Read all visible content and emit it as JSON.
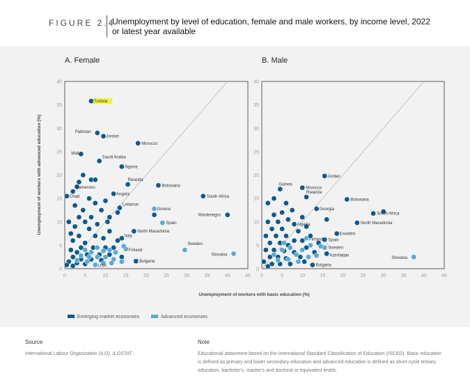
{
  "figure": {
    "label": "FIGURE 2.4",
    "title": "Unemployment by level of education, female and male workers, by income level, 2022 or latest year available"
  },
  "colors": {
    "emerging": "#0c5a8f",
    "advanced": "#5aa9d6",
    "diagonal": "#c4c4c4",
    "highlight": "#f5ef3a"
  },
  "legend": {
    "items": [
      {
        "label": "Emerging market economies",
        "color": "#0c5a8f"
      },
      {
        "label": "Advanced economies",
        "color": "#5aa9d6"
      }
    ]
  },
  "chart_data": [
    {
      "type": "scatter",
      "title": "A. Female",
      "xlabel": "Unemployment of workers with basic education (%)",
      "ylabel": "Unemployment of workers with advanced education (%)",
      "xlim": [
        0,
        45
      ],
      "ylim": [
        0,
        40
      ],
      "xticks": [
        "0",
        "5",
        "10",
        "15",
        "20",
        "25",
        "30",
        "35",
        "40",
        "45"
      ],
      "yticks": [
        "0",
        "5",
        "10",
        "15",
        "20",
        "25",
        "30",
        "35",
        "40"
      ],
      "reference_line": "45-degree line",
      "series": [
        {
          "name": "Emerging market economies",
          "points": [
            {
              "x": 6.5,
              "y": 35.8,
              "label": "Tunisia",
              "highlight": true
            },
            {
              "x": 8,
              "y": 29,
              "label": "Pakistan"
            },
            {
              "x": 9.5,
              "y": 28.3,
              "label": "Jordan"
            },
            {
              "x": 18,
              "y": 26.8,
              "label": "Morocco"
            },
            {
              "x": 4,
              "y": 24.5,
              "label": "Mali"
            },
            {
              "x": 8.5,
              "y": 23,
              "label": "Saudi Arabia"
            },
            {
              "x": 14,
              "y": 21.8,
              "label": "Algeria"
            },
            {
              "x": 15.5,
              "y": 18,
              "label": "Rwanda"
            },
            {
              "x": 23,
              "y": 17.8,
              "label": "Botswana"
            },
            {
              "x": 2,
              "y": 16.5,
              "label": "Cameroon"
            },
            {
              "x": 12,
              "y": 16,
              "label": "Angola"
            },
            {
              "x": 0.5,
              "y": 15.5,
              "label": "Chad"
            },
            {
              "x": 34,
              "y": 15.5,
              "label": "South Africa"
            },
            {
              "x": 13.5,
              "y": 13,
              "label": "Lebanon"
            },
            {
              "x": 40,
              "y": 11.5,
              "label": "Montenegro"
            },
            {
              "x": 17,
              "y": 8,
              "label": "North Macedonia"
            },
            {
              "x": 14,
              "y": 6.5,
              "label": "Italy"
            },
            {
              "x": 17.5,
              "y": 1.6,
              "label": "Bulgaria"
            },
            {
              "x": 4.5,
              "y": 20
            },
            {
              "x": 6.5,
              "y": 19
            },
            {
              "x": 7.5,
              "y": 19
            },
            {
              "x": 3.5,
              "y": 18.5
            },
            {
              "x": 3,
              "y": 17.5
            },
            {
              "x": 6,
              "y": 15
            },
            {
              "x": 7.5,
              "y": 14
            },
            {
              "x": 2.5,
              "y": 13.5
            },
            {
              "x": 10,
              "y": 14.5
            },
            {
              "x": 4.5,
              "y": 12.5
            },
            {
              "x": 9,
              "y": 12.5
            },
            {
              "x": 13,
              "y": 12
            },
            {
              "x": 22,
              "y": 11.5
            },
            {
              "x": 3.5,
              "y": 11
            },
            {
              "x": 6.5,
              "y": 11
            },
            {
              "x": 11,
              "y": 11
            },
            {
              "x": 1,
              "y": 10
            },
            {
              "x": 5,
              "y": 10
            },
            {
              "x": 8,
              "y": 9.5
            },
            {
              "x": 10.5,
              "y": 10
            },
            {
              "x": 2.5,
              "y": 9
            },
            {
              "x": 6,
              "y": 8.5
            },
            {
              "x": 11,
              "y": 8
            },
            {
              "x": 1.5,
              "y": 7.5
            },
            {
              "x": 3.5,
              "y": 7
            },
            {
              "x": 7.5,
              "y": 7
            },
            {
              "x": 9.5,
              "y": 6.5
            },
            {
              "x": 13,
              "y": 6
            },
            {
              "x": 2,
              "y": 6
            },
            {
              "x": 5,
              "y": 5.5
            },
            {
              "x": 4,
              "y": 4.5
            },
            {
              "x": 7,
              "y": 4.5
            },
            {
              "x": 10,
              "y": 4.5
            },
            {
              "x": 12,
              "y": 4.5
            },
            {
              "x": 1.5,
              "y": 4
            },
            {
              "x": 3,
              "y": 3.5
            },
            {
              "x": 5.5,
              "y": 3
            },
            {
              "x": 8.5,
              "y": 3
            },
            {
              "x": 11,
              "y": 3
            },
            {
              "x": 2,
              "y": 2.5
            },
            {
              "x": 4,
              "y": 2
            },
            {
              "x": 6.5,
              "y": 2
            },
            {
              "x": 9,
              "y": 1.8
            },
            {
              "x": 1,
              "y": 1.5
            },
            {
              "x": 3,
              "y": 1.2
            },
            {
              "x": 5,
              "y": 1
            },
            {
              "x": 0.5,
              "y": 0.8
            },
            {
              "x": 2,
              "y": 0.6
            },
            {
              "x": 14,
              "y": 2.5
            }
          ]
        },
        {
          "name": "Advanced economies",
          "points": [
            {
              "x": 22,
              "y": 12.8,
              "label": "Greece"
            },
            {
              "x": 24,
              "y": 9.8,
              "label": "Spain"
            },
            {
              "x": 29.5,
              "y": 4,
              "label": "Sweden"
            },
            {
              "x": 41.5,
              "y": 3.2,
              "label": "Slovakia"
            },
            {
              "x": 15,
              "y": 4.2,
              "label": "Finland"
            },
            {
              "x": 7.5,
              "y": 0.8,
              "label": "USA"
            },
            {
              "x": 5,
              "y": 4
            },
            {
              "x": 6.5,
              "y": 3.5
            },
            {
              "x": 8,
              "y": 4.5
            },
            {
              "x": 9.5,
              "y": 3.8
            },
            {
              "x": 11,
              "y": 4
            },
            {
              "x": 12.5,
              "y": 3.5
            },
            {
              "x": 4,
              "y": 2.8
            },
            {
              "x": 6,
              "y": 2.5
            },
            {
              "x": 8,
              "y": 2.5
            },
            {
              "x": 10,
              "y": 2.5
            },
            {
              "x": 12,
              "y": 2
            },
            {
              "x": 14,
              "y": 1.5
            },
            {
              "x": 3,
              "y": 1.8
            },
            {
              "x": 5.5,
              "y": 1.5
            },
            {
              "x": 9.5,
              "y": 1.2
            },
            {
              "x": 11.5,
              "y": 1.2
            },
            {
              "x": 14.5,
              "y": 4.8
            }
          ]
        }
      ]
    },
    {
      "type": "scatter",
      "title": "B. Male",
      "xlabel": "Unemployment of workers with basic education (%)",
      "ylabel": "Unemployment of workers with advanced education (%)",
      "xlim": [
        0,
        45
      ],
      "ylim": [
        0,
        40
      ],
      "xticks": [
        "0",
        "5",
        "10",
        "15",
        "20",
        "25",
        "30",
        "35",
        "40",
        "45"
      ],
      "yticks": [
        "0",
        "5",
        "10",
        "15",
        "20",
        "25",
        "30",
        "35",
        "40"
      ],
      "reference_line": "45-degree line",
      "series": [
        {
          "name": "Emerging market economies",
          "points": [
            {
              "x": 15.5,
              "y": 19.8,
              "label": "Jordan"
            },
            {
              "x": 4.5,
              "y": 17,
              "label": "Guinea"
            },
            {
              "x": 10,
              "y": 17.3,
              "label": "Morocco"
            },
            {
              "x": 11,
              "y": 15.3,
              "label": "Rwanda"
            },
            {
              "x": 21,
              "y": 14.8,
              "label": "Botswana"
            },
            {
              "x": 13.5,
              "y": 12.8,
              "label": "Georgia"
            },
            {
              "x": 27.5,
              "y": 11.8,
              "label": "South Africa"
            },
            {
              "x": 30,
              "y": 12.2
            },
            {
              "x": 23.5,
              "y": 9.8,
              "label": "North Macedonia"
            },
            {
              "x": 8,
              "y": 9.5,
              "label": "Algeria"
            },
            {
              "x": 18.5,
              "y": 7.5,
              "label": "Eswatini"
            },
            {
              "x": 15.5,
              "y": 6.2,
              "label": "Spain"
            },
            {
              "x": 16,
              "y": 3.2,
              "label": "Azerbaijan"
            },
            {
              "x": 12.5,
              "y": 0.8,
              "label": "Bulgaria"
            },
            {
              "x": 1.5,
              "y": 14
            },
            {
              "x": 3,
              "y": 15
            },
            {
              "x": 6,
              "y": 14
            },
            {
              "x": 7.5,
              "y": 12.5
            },
            {
              "x": 5,
              "y": 12
            },
            {
              "x": 3,
              "y": 11.5
            },
            {
              "x": 1.5,
              "y": 10
            },
            {
              "x": 4,
              "y": 10
            },
            {
              "x": 6.5,
              "y": 10.5
            },
            {
              "x": 10,
              "y": 11
            },
            {
              "x": 16,
              "y": 10.5
            },
            {
              "x": 2.5,
              "y": 8.5
            },
            {
              "x": 5,
              "y": 8.5
            },
            {
              "x": 9,
              "y": 8
            },
            {
              "x": 11,
              "y": 9
            },
            {
              "x": 12,
              "y": 7
            },
            {
              "x": 1,
              "y": 7
            },
            {
              "x": 3.5,
              "y": 7
            },
            {
              "x": 6,
              "y": 7
            },
            {
              "x": 8,
              "y": 6
            },
            {
              "x": 10,
              "y": 6
            },
            {
              "x": 14,
              "y": 5.5
            },
            {
              "x": 2,
              "y": 5.5
            },
            {
              "x": 4.5,
              "y": 5.5
            },
            {
              "x": 6.5,
              "y": 5
            },
            {
              "x": 11,
              "y": 4.5
            },
            {
              "x": 1,
              "y": 4
            },
            {
              "x": 3,
              "y": 4
            },
            {
              "x": 5.5,
              "y": 3.8
            },
            {
              "x": 8,
              "y": 3.5
            },
            {
              "x": 13,
              "y": 3.5
            },
            {
              "x": 2,
              "y": 2.5
            },
            {
              "x": 4,
              "y": 2.5
            },
            {
              "x": 6,
              "y": 2.2
            },
            {
              "x": 9.5,
              "y": 2.5
            },
            {
              "x": 0.5,
              "y": 1.5
            },
            {
              "x": 2.5,
              "y": 1
            },
            {
              "x": 4.5,
              "y": 1
            },
            {
              "x": 7,
              "y": 1
            },
            {
              "x": 10.5,
              "y": 1.5
            },
            {
              "x": 1.5,
              "y": 0.5
            }
          ]
        },
        {
          "name": "Advanced economies",
          "points": [
            {
              "x": 37.5,
              "y": 2.5,
              "label": "Slovakia"
            },
            {
              "x": 15.5,
              "y": 4.5,
              "label": "Sweden"
            },
            {
              "x": 11,
              "y": 6.5,
              "label": "Finland"
            },
            {
              "x": 3,
              "y": 3
            },
            {
              "x": 5,
              "y": 4
            },
            {
              "x": 7,
              "y": 4.5
            },
            {
              "x": 8.5,
              "y": 3
            },
            {
              "x": 10,
              "y": 4
            },
            {
              "x": 12,
              "y": 5
            },
            {
              "x": 4,
              "y": 1.8
            },
            {
              "x": 6.5,
              "y": 2
            },
            {
              "x": 9,
              "y": 1.5
            },
            {
              "x": 11.5,
              "y": 2.5
            },
            {
              "x": 13.5,
              "y": 2.8
            },
            {
              "x": 5.5,
              "y": 5.5
            },
            {
              "x": 14.5,
              "y": 4.8
            }
          ]
        }
      ]
    }
  ],
  "footer": {
    "source_heading": "Source",
    "source_text": "International Labour Organization (ILO), ",
    "source_emph": "ILOSTAT",
    "source_end": ".",
    "note_heading": "Note",
    "note_text": "Educational attainment based on the International Standard Classification of Education (ISCED). Basic education is defined as primary and lower secondary education and advanced education is defined as short-cycle tertiary education, bachelor's, master's and doctoral or equivalent levels."
  }
}
